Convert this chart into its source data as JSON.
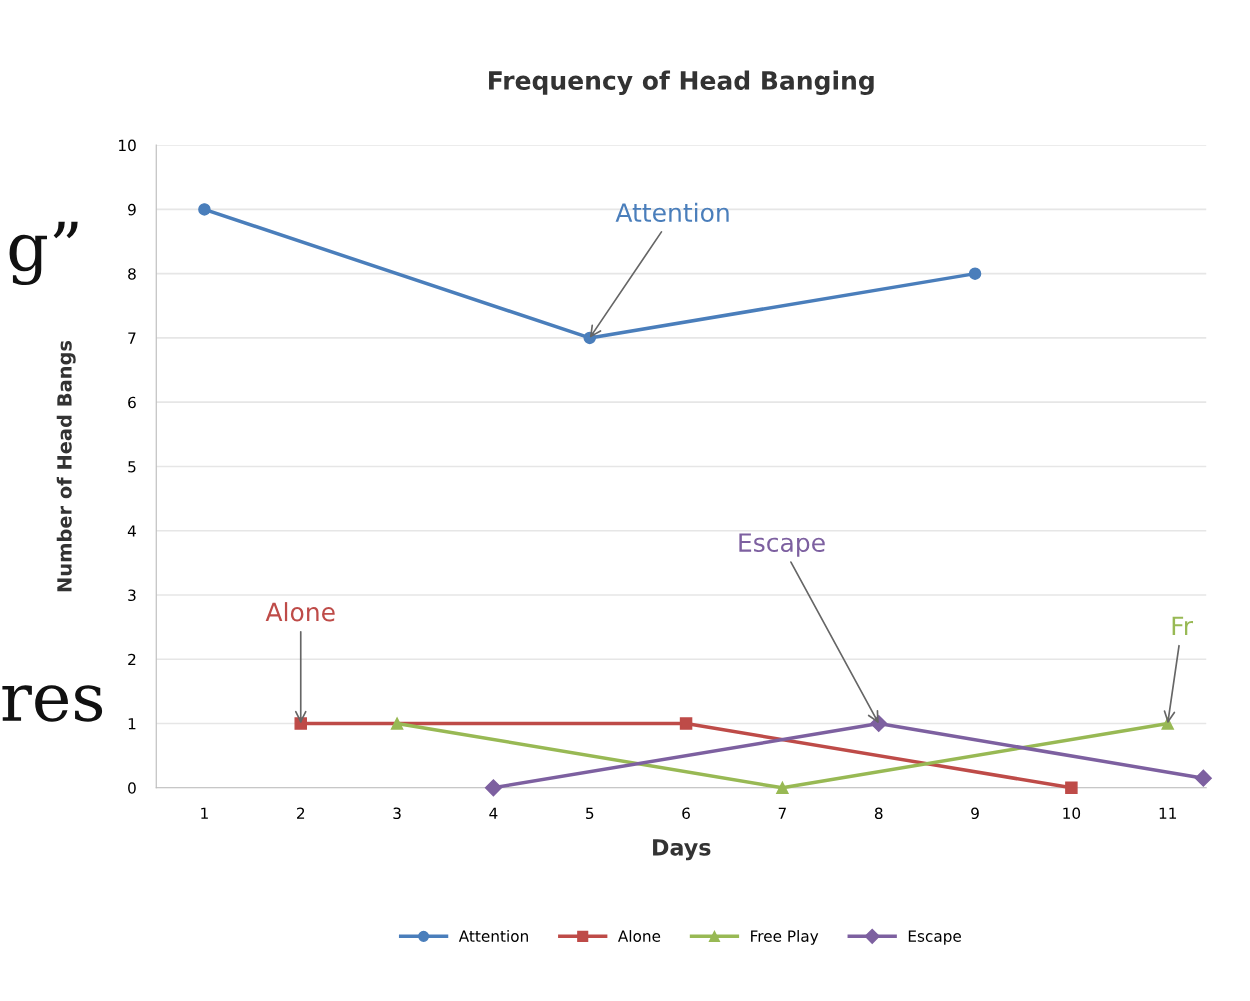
{
  "chart_data": {
    "type": "line",
    "title": "Frequency of Head Banging",
    "xlabel": "Days",
    "ylabel": "Number of Head Bangs",
    "xlim": [
      0.5,
      11.4
    ],
    "xticks": [
      1,
      2,
      3,
      4,
      5,
      6,
      7,
      8,
      9,
      10,
      11
    ],
    "ylim": [
      0,
      10
    ],
    "yticks": [
      0,
      1,
      2,
      3,
      4,
      5,
      6,
      7,
      8,
      9,
      10
    ],
    "grid": "y",
    "legend": "bottom",
    "series": [
      {
        "name": "Attention",
        "color": "#4a7ebb",
        "marker": "circle",
        "x": [
          1,
          5,
          9
        ],
        "values": [
          9,
          7,
          8
        ]
      },
      {
        "name": "Alone",
        "color": "#be4b48",
        "marker": "square",
        "x": [
          2,
          6,
          10
        ],
        "values": [
          1,
          1,
          0
        ]
      },
      {
        "name": "Free Play",
        "color": "#98b954",
        "marker": "triangle",
        "x": [
          3,
          7,
          11
        ],
        "values": [
          1,
          0,
          1
        ]
      },
      {
        "name": "Escape",
        "color": "#7d60a0",
        "marker": "diamond",
        "x": [
          4,
          8,
          11.37
        ],
        "values": [
          0,
          1,
          0.15
        ]
      }
    ],
    "annotations": [
      {
        "text": "Attention",
        "x": 5,
        "y": 7
      },
      {
        "text": "Alone",
        "x": 2,
        "y": 1
      },
      {
        "text": "Escape",
        "x": 8,
        "y": 1
      },
      {
        "text": "Fr",
        "x": 11,
        "y": 1
      },
      "g”",
      "res"
    ]
  }
}
